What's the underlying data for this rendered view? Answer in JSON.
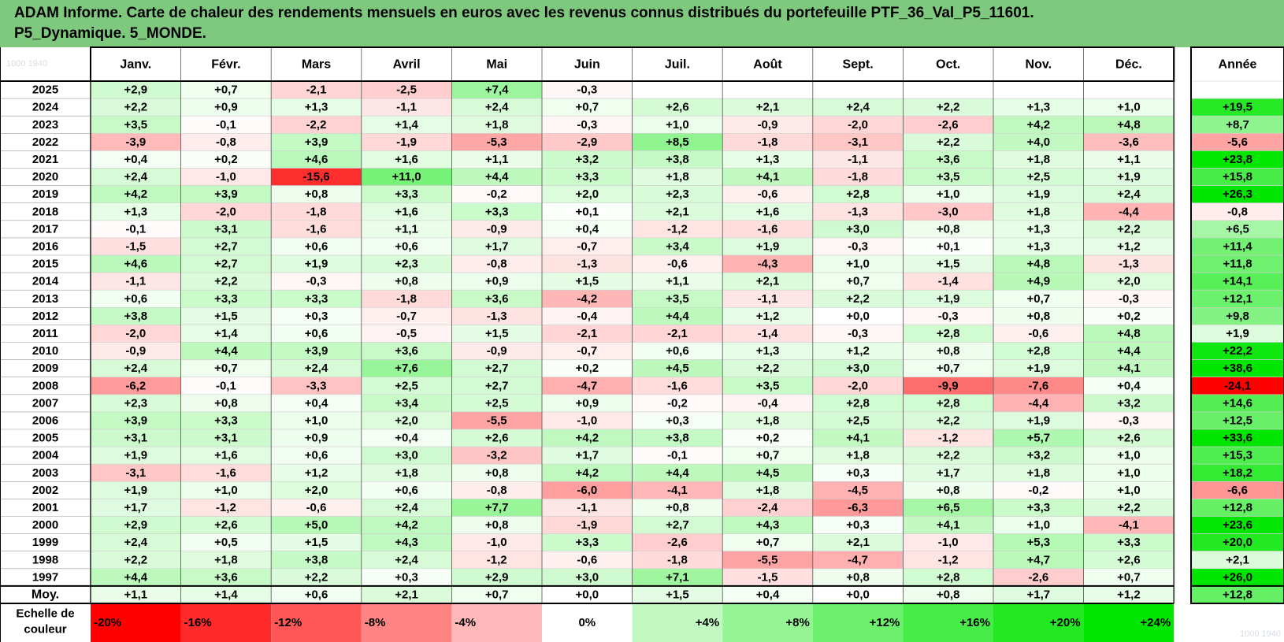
{
  "title": {
    "line1": "ADAM Informe. Carte de chaleur des rendements mensuels en euros avec les revenus connus distribués du portefeuille PTF_36_Val_P5_11601.",
    "line2": "P5_Dynamique. 5_MONDE."
  },
  "colors": {
    "header_bg": "#7FC97F",
    "negative_max": "#FF0000",
    "positive_max": "#00E600",
    "neutral": "#FFFFFF"
  },
  "watermark": {
    "top_left": "1000 1940",
    "bottom_right": "1000 1940"
  },
  "chart_data": {
    "type": "heatmap",
    "title": "ADAM Informe. Carte de chaleur des rendements mensuels en euros avec les revenus connus distribués du portefeuille PTF_36_Val_P5_11601. P5_Dynamique. 5_MONDE.",
    "months": [
      "Janv.",
      "Févr.",
      "Mars",
      "Avril",
      "Mai",
      "Juin",
      "Juil.",
      "Août",
      "Sept.",
      "Oct.",
      "Nov.",
      "Déc."
    ],
    "year_label": "Année",
    "rows": [
      {
        "year": "2025",
        "values": [
          "+2,9",
          "+0,7",
          "-2,1",
          "-2,5",
          "+7,4",
          "-0,3",
          "",
          "",
          "",
          "",
          "",
          ""
        ],
        "annual": ""
      },
      {
        "year": "2024",
        "values": [
          "+2,2",
          "+0,9",
          "+1,3",
          "-1,1",
          "+2,4",
          "+0,7",
          "+2,6",
          "+2,1",
          "+2,4",
          "+2,2",
          "+1,3",
          "+1,0"
        ],
        "annual": "+19,5"
      },
      {
        "year": "2023",
        "values": [
          "+3,5",
          "-0,1",
          "-2,2",
          "+1,4",
          "+1,8",
          "-0,3",
          "+1,0",
          "-0,9",
          "-2,0",
          "-2,6",
          "+4,2",
          "+4,8"
        ],
        "annual": "+8,7"
      },
      {
        "year": "2022",
        "values": [
          "-3,9",
          "-0,8",
          "+3,9",
          "-1,9",
          "-5,3",
          "-2,9",
          "+8,5",
          "-1,8",
          "-3,1",
          "+2,2",
          "+4,0",
          "-3,6"
        ],
        "annual": "-5,6"
      },
      {
        "year": "2021",
        "values": [
          "+0,4",
          "+0,2",
          "+4,6",
          "+1,6",
          "+1,1",
          "+3,2",
          "+3,8",
          "+1,3",
          "-1,1",
          "+3,6",
          "+1,8",
          "+1,1"
        ],
        "annual": "+23,8"
      },
      {
        "year": "2020",
        "values": [
          "+2,4",
          "-1,0",
          "-15,6",
          "+11,0",
          "+4,4",
          "+3,3",
          "+1,8",
          "+4,1",
          "-1,8",
          "+3,5",
          "+2,5",
          "+1,9"
        ],
        "annual": "+15,8"
      },
      {
        "year": "2019",
        "values": [
          "+4,2",
          "+3,9",
          "+0,8",
          "+3,3",
          "-0,2",
          "+2,0",
          "+2,3",
          "-0,6",
          "+2,8",
          "+1,0",
          "+1,9",
          "+2,4"
        ],
        "annual": "+26,3"
      },
      {
        "year": "2018",
        "values": [
          "+1,3",
          "-2,0",
          "-1,8",
          "+1,6",
          "+3,3",
          "+0,1",
          "+2,1",
          "+1,6",
          "-1,3",
          "-3,0",
          "+1,8",
          "-4,4"
        ],
        "annual": "-0,8"
      },
      {
        "year": "2017",
        "values": [
          "-0,1",
          "+3,1",
          "-1,6",
          "+1,1",
          "-0,9",
          "+0,4",
          "-1,2",
          "-1,6",
          "+3,0",
          "+0,8",
          "+1,3",
          "+2,2"
        ],
        "annual": "+6,5"
      },
      {
        "year": "2016",
        "values": [
          "-1,5",
          "+2,7",
          "+0,6",
          "+0,6",
          "+1,7",
          "-0,7",
          "+3,4",
          "+1,9",
          "-0,3",
          "+0,1",
          "+1,3",
          "+1,2"
        ],
        "annual": "+11,4"
      },
      {
        "year": "2015",
        "values": [
          "+4,6",
          "+2,7",
          "+1,9",
          "+2,3",
          "-0,8",
          "-1,3",
          "-0,6",
          "-4,3",
          "+1,0",
          "+1,5",
          "+4,8",
          "-1,3"
        ],
        "annual": "+11,8"
      },
      {
        "year": "2014",
        "values": [
          "-1,1",
          "+2,2",
          "-0,3",
          "+0,8",
          "+0,9",
          "+1,5",
          "+1,1",
          "+2,1",
          "+0,7",
          "-1,4",
          "+4,9",
          "+2,0"
        ],
        "annual": "+14,1"
      },
      {
        "year": "2013",
        "values": [
          "+0,6",
          "+3,3",
          "+3,3",
          "-1,8",
          "+3,6",
          "-4,2",
          "+3,5",
          "-1,1",
          "+2,2",
          "+1,9",
          "+0,7",
          "-0,3"
        ],
        "annual": "+12,1"
      },
      {
        "year": "2012",
        "values": [
          "+3,8",
          "+1,5",
          "+0,3",
          "-0,7",
          "-1,3",
          "-0,4",
          "+4,4",
          "+1,2",
          "+0,0",
          "-0,3",
          "+0,8",
          "+0,2"
        ],
        "annual": "+9,8"
      },
      {
        "year": "2011",
        "values": [
          "-2,0",
          "+1,4",
          "+0,6",
          "-0,5",
          "+1,5",
          "-2,1",
          "-2,1",
          "-1,4",
          "-0,3",
          "+2,8",
          "-0,6",
          "+4,8"
        ],
        "annual": "+1,9"
      },
      {
        "year": "2010",
        "values": [
          "-0,9",
          "+4,4",
          "+3,9",
          "+3,6",
          "-0,9",
          "-0,7",
          "+0,6",
          "+1,3",
          "+1,2",
          "+0,8",
          "+2,8",
          "+4,4"
        ],
        "annual": "+22,2"
      },
      {
        "year": "2009",
        "values": [
          "+2,4",
          "+0,7",
          "+2,4",
          "+7,6",
          "+2,7",
          "+0,2",
          "+4,5",
          "+2,2",
          "+3,0",
          "+0,7",
          "+1,9",
          "+4,1"
        ],
        "annual": "+38,6"
      },
      {
        "year": "2008",
        "values": [
          "-6,2",
          "-0,1",
          "-3,3",
          "+2,5",
          "+2,7",
          "-4,7",
          "-1,6",
          "+3,5",
          "-2,0",
          "-9,9",
          "-7,6",
          "+0,4"
        ],
        "annual": "-24,1"
      },
      {
        "year": "2007",
        "values": [
          "+2,3",
          "+0,8",
          "+0,4",
          "+3,4",
          "+2,5",
          "+0,9",
          "-0,2",
          "-0,4",
          "+2,8",
          "+2,8",
          "-4,4",
          "+3,2"
        ],
        "annual": "+14,6"
      },
      {
        "year": "2006",
        "values": [
          "+3,9",
          "+3,3",
          "+1,0",
          "+2,0",
          "-5,5",
          "-1,0",
          "+0,3",
          "+1,8",
          "+2,5",
          "+2,2",
          "+1,9",
          "-0,3"
        ],
        "annual": "+12,5"
      },
      {
        "year": "2005",
        "values": [
          "+3,1",
          "+3,1",
          "+0,9",
          "+0,4",
          "+2,6",
          "+4,2",
          "+3,8",
          "+0,2",
          "+4,1",
          "-1,2",
          "+5,7",
          "+2,6"
        ],
        "annual": "+33,6"
      },
      {
        "year": "2004",
        "values": [
          "+1,9",
          "+1,6",
          "+0,6",
          "+3,0",
          "-3,2",
          "+1,7",
          "-0,1",
          "+0,7",
          "+1,8",
          "+2,2",
          "+3,2",
          "+1,0"
        ],
        "annual": "+15,3"
      },
      {
        "year": "2003",
        "values": [
          "-3,1",
          "-1,6",
          "+1,2",
          "+1,8",
          "+0,8",
          "+4,2",
          "+4,4",
          "+4,5",
          "+0,3",
          "+1,7",
          "+1,8",
          "+1,0"
        ],
        "annual": "+18,2"
      },
      {
        "year": "2002",
        "values": [
          "+1,9",
          "+1,0",
          "+2,0",
          "+0,6",
          "-0,8",
          "-6,0",
          "-4,1",
          "+1,8",
          "-4,5",
          "+0,8",
          "-0,2",
          "+1,0"
        ],
        "annual": "-6,6"
      },
      {
        "year": "2001",
        "values": [
          "+1,7",
          "-1,2",
          "-0,6",
          "+2,4",
          "+7,7",
          "-1,1",
          "+0,8",
          "-2,4",
          "-6,3",
          "+6,5",
          "+3,3",
          "+2,2"
        ],
        "annual": "+12,8"
      },
      {
        "year": "2000",
        "values": [
          "+2,9",
          "+2,6",
          "+5,0",
          "+4,2",
          "+0,8",
          "-1,9",
          "+2,7",
          "+4,3",
          "+0,3",
          "+4,1",
          "+1,0",
          "-4,1"
        ],
        "annual": "+23,6"
      },
      {
        "year": "1999",
        "values": [
          "+2,4",
          "+0,5",
          "+1,5",
          "+4,3",
          "-1,0",
          "+3,3",
          "-2,6",
          "+0,7",
          "+2,1",
          "-1,0",
          "+5,3",
          "+3,3"
        ],
        "annual": "+20,0"
      },
      {
        "year": "1998",
        "values": [
          "+2,2",
          "+1,8",
          "+3,8",
          "+2,4",
          "-1,2",
          "-0,6",
          "-1,8",
          "-5,5",
          "-4,7",
          "-1,2",
          "+4,7",
          "+2,6"
        ],
        "annual": "+2,1"
      },
      {
        "year": "1997",
        "values": [
          "+4,4",
          "+3,6",
          "+2,2",
          "+0,3",
          "+2,9",
          "+3,0",
          "+7,1",
          "-1,5",
          "+0,8",
          "+2,8",
          "-2,6",
          "+0,7"
        ],
        "annual": "+26,0"
      }
    ],
    "average": {
      "label": "Moy.",
      "values": [
        "+1,1",
        "+1,4",
        "+0,6",
        "+2,1",
        "+0,7",
        "+0,0",
        "+1,5",
        "+0,4",
        "+0,0",
        "+0,8",
        "+1,7",
        "+1,2"
      ],
      "annual": "+12,8"
    },
    "scale": {
      "label_line1": "Echelle de",
      "label_line2": "couleur",
      "stops": [
        "-20%",
        "-16%",
        "-12%",
        "-8%",
        "-4%",
        "0%",
        "+4%",
        "+8%",
        "+12%",
        "+16%",
        "+20%",
        "+24%"
      ]
    }
  }
}
